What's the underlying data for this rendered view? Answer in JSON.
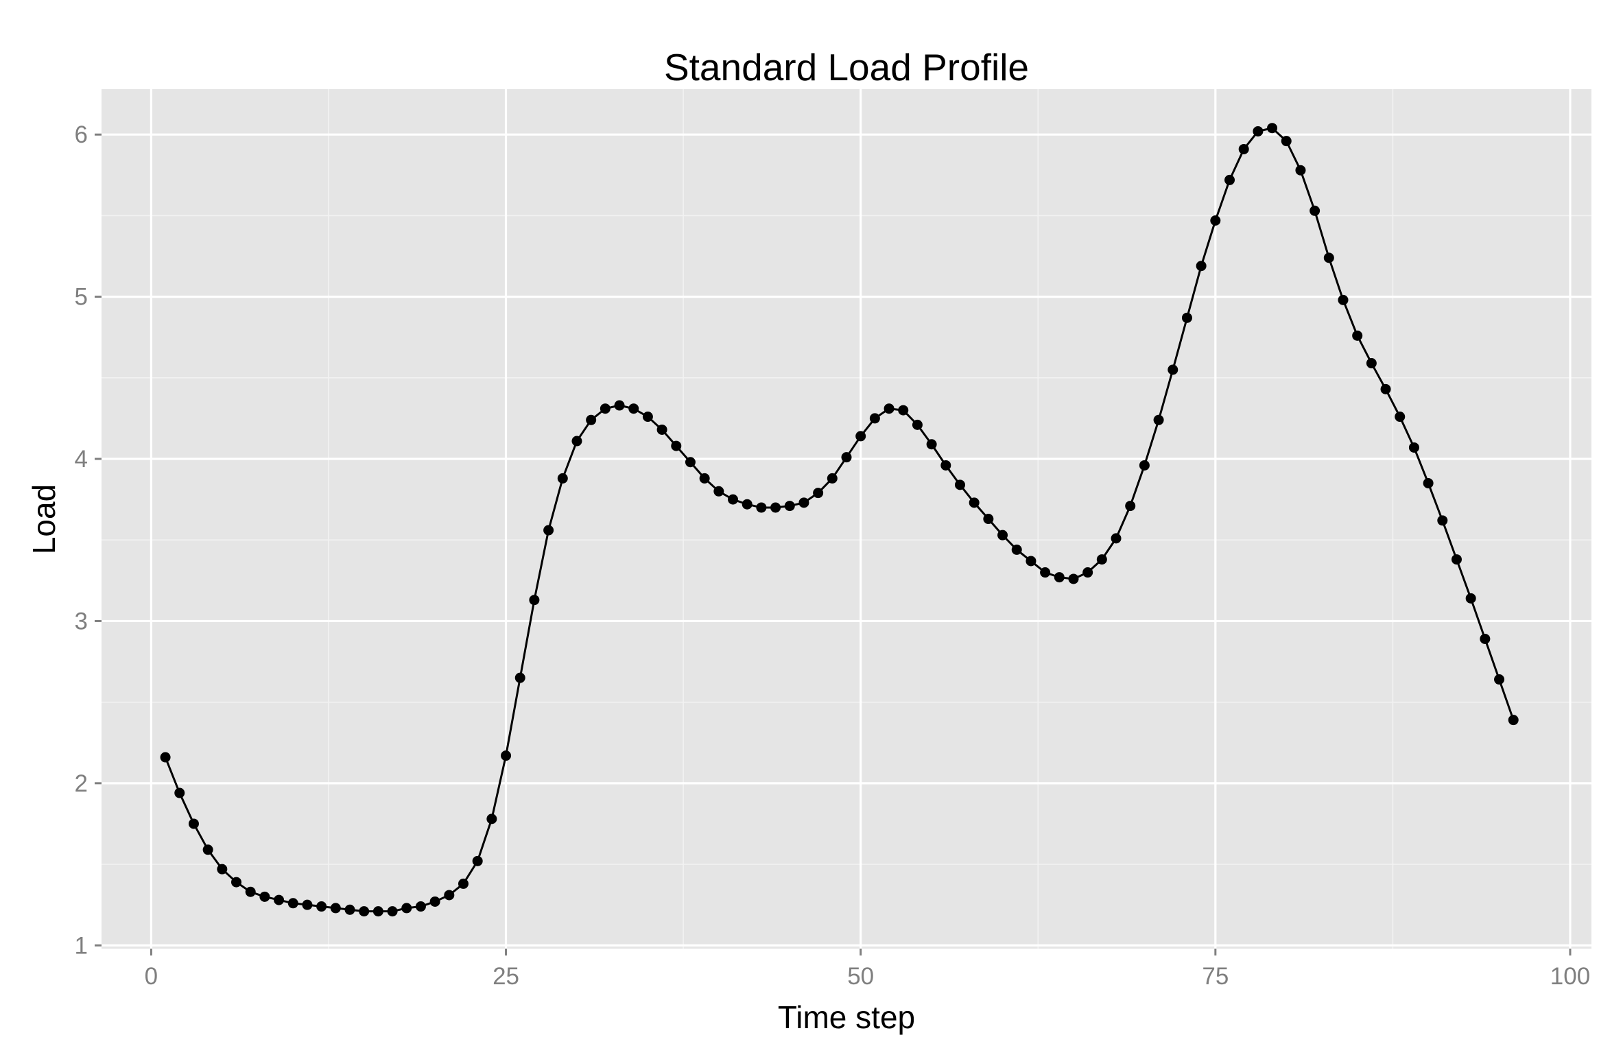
{
  "chart_data": {
    "type": "line",
    "title": "Standard Load Profile",
    "xlabel": "Time step",
    "ylabel": "Load",
    "xlim": [
      -3.5,
      101.5
    ],
    "ylim": [
      0.98,
      6.28
    ],
    "x_ticks": [
      0,
      25,
      50,
      75,
      100
    ],
    "x_tick_labels": [
      "0",
      "25",
      "50",
      "75",
      "100"
    ],
    "y_ticks": [
      1,
      2,
      3,
      4,
      5,
      6
    ],
    "y_tick_labels": [
      "1",
      "2",
      "3",
      "4",
      "5",
      "6"
    ],
    "x_minor_ticks": [
      12.5,
      37.5,
      62.5,
      87.5
    ],
    "y_minor_ticks": [
      1.5,
      2.5,
      3.5,
      4.5,
      5.5
    ],
    "grid": true,
    "legend": "none",
    "series": [
      {
        "x": [
          1,
          2,
          3,
          4,
          5,
          6,
          7,
          8,
          9,
          10,
          11,
          12,
          13,
          14,
          15,
          16,
          17,
          18,
          19,
          20,
          21,
          22,
          23,
          24,
          25,
          26,
          27,
          28,
          29,
          30,
          31,
          32,
          33,
          34,
          35,
          36,
          37,
          38,
          39,
          40,
          41,
          42,
          43,
          44,
          45,
          46,
          47,
          48,
          49,
          50,
          51,
          52,
          53,
          54,
          55,
          56,
          57,
          58,
          59,
          60,
          61,
          62,
          63,
          64,
          65,
          66,
          67,
          68,
          69,
          70,
          71,
          72,
          73,
          74,
          75,
          76,
          77,
          78,
          79,
          80,
          81,
          82,
          83,
          84,
          85,
          86,
          87,
          88,
          89,
          90,
          91,
          92,
          93,
          94,
          95,
          96
        ],
        "values": [
          2.16,
          1.94,
          1.75,
          1.59,
          1.47,
          1.39,
          1.33,
          1.3,
          1.28,
          1.26,
          1.25,
          1.24,
          1.23,
          1.22,
          1.21,
          1.21,
          1.21,
          1.23,
          1.24,
          1.27,
          1.31,
          1.38,
          1.52,
          1.78,
          2.17,
          2.65,
          3.13,
          3.56,
          3.88,
          4.11,
          4.24,
          4.31,
          4.33,
          4.31,
          4.26,
          4.18,
          4.08,
          3.98,
          3.88,
          3.8,
          3.75,
          3.72,
          3.7,
          3.7,
          3.71,
          3.73,
          3.79,
          3.88,
          4.01,
          4.14,
          4.25,
          4.31,
          4.3,
          4.21,
          4.09,
          3.96,
          3.84,
          3.73,
          3.63,
          3.53,
          3.44,
          3.37,
          3.3,
          3.27,
          3.26,
          3.3,
          3.38,
          3.51,
          3.71,
          3.96,
          4.24,
          4.55,
          4.87,
          5.19,
          5.47,
          5.72,
          5.91,
          6.02,
          6.04,
          5.96,
          5.78,
          5.53,
          5.24,
          4.98,
          4.76,
          4.59,
          4.43,
          4.26,
          4.07,
          3.85,
          3.62,
          3.38,
          3.14,
          2.89,
          2.64,
          2.39
        ]
      }
    ],
    "colors": {
      "panel_background": "#e5e5e5",
      "major_grid": "#ffffff",
      "minor_grid": "#f2f2f2",
      "line": "#000000",
      "point": "#000000",
      "tick_text": "#7f7f7f"
    }
  }
}
